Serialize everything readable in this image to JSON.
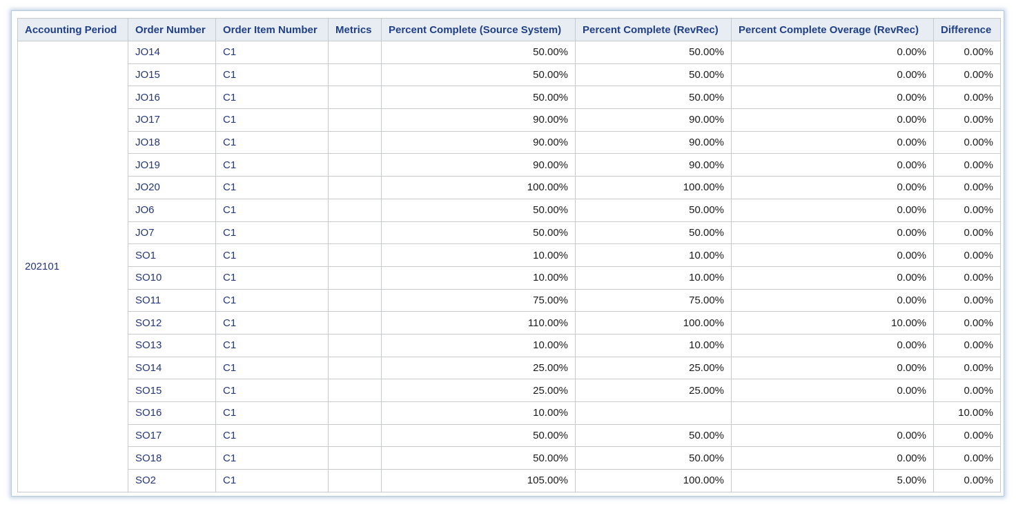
{
  "table": {
    "headers": [
      "Accounting Period",
      "Order Number",
      "Order Item Number",
      "Metrics",
      "Percent Complete (Source System)",
      "Percent Complete (RevRec)",
      "Percent Complete Overage (RevRec)",
      "Difference"
    ],
    "accounting_period": "202101",
    "rows": [
      {
        "order": "JO14",
        "item": "C1",
        "metrics": "",
        "pc_source": "50.00%",
        "pc_revrec": "50.00%",
        "overage": "0.00%",
        "difference": "0.00%"
      },
      {
        "order": "JO15",
        "item": "C1",
        "metrics": "",
        "pc_source": "50.00%",
        "pc_revrec": "50.00%",
        "overage": "0.00%",
        "difference": "0.00%"
      },
      {
        "order": "JO16",
        "item": "C1",
        "metrics": "",
        "pc_source": "50.00%",
        "pc_revrec": "50.00%",
        "overage": "0.00%",
        "difference": "0.00%"
      },
      {
        "order": "JO17",
        "item": "C1",
        "metrics": "",
        "pc_source": "90.00%",
        "pc_revrec": "90.00%",
        "overage": "0.00%",
        "difference": "0.00%"
      },
      {
        "order": "JO18",
        "item": "C1",
        "metrics": "",
        "pc_source": "90.00%",
        "pc_revrec": "90.00%",
        "overage": "0.00%",
        "difference": "0.00%"
      },
      {
        "order": "JO19",
        "item": "C1",
        "metrics": "",
        "pc_source": "90.00%",
        "pc_revrec": "90.00%",
        "overage": "0.00%",
        "difference": "0.00%"
      },
      {
        "order": "JO20",
        "item": "C1",
        "metrics": "",
        "pc_source": "100.00%",
        "pc_revrec": "100.00%",
        "overage": "0.00%",
        "difference": "0.00%"
      },
      {
        "order": "JO6",
        "item": "C1",
        "metrics": "",
        "pc_source": "50.00%",
        "pc_revrec": "50.00%",
        "overage": "0.00%",
        "difference": "0.00%"
      },
      {
        "order": "JO7",
        "item": "C1",
        "metrics": "",
        "pc_source": "50.00%",
        "pc_revrec": "50.00%",
        "overage": "0.00%",
        "difference": "0.00%"
      },
      {
        "order": "SO1",
        "item": "C1",
        "metrics": "",
        "pc_source": "10.00%",
        "pc_revrec": "10.00%",
        "overage": "0.00%",
        "difference": "0.00%"
      },
      {
        "order": "SO10",
        "item": "C1",
        "metrics": "",
        "pc_source": "10.00%",
        "pc_revrec": "10.00%",
        "overage": "0.00%",
        "difference": "0.00%"
      },
      {
        "order": "SO11",
        "item": "C1",
        "metrics": "",
        "pc_source": "75.00%",
        "pc_revrec": "75.00%",
        "overage": "0.00%",
        "difference": "0.00%"
      },
      {
        "order": "SO12",
        "item": "C1",
        "metrics": "",
        "pc_source": "110.00%",
        "pc_revrec": "100.00%",
        "overage": "10.00%",
        "difference": "0.00%"
      },
      {
        "order": "SO13",
        "item": "C1",
        "metrics": "",
        "pc_source": "10.00%",
        "pc_revrec": "10.00%",
        "overage": "0.00%",
        "difference": "0.00%"
      },
      {
        "order": "SO14",
        "item": "C1",
        "metrics": "",
        "pc_source": "25.00%",
        "pc_revrec": "25.00%",
        "overage": "0.00%",
        "difference": "0.00%"
      },
      {
        "order": "SO15",
        "item": "C1",
        "metrics": "",
        "pc_source": "25.00%",
        "pc_revrec": "25.00%",
        "overage": "0.00%",
        "difference": "0.00%"
      },
      {
        "order": "SO16",
        "item": "C1",
        "metrics": "",
        "pc_source": "10.00%",
        "pc_revrec": "",
        "overage": "",
        "difference": "10.00%"
      },
      {
        "order": "SO17",
        "item": "C1",
        "metrics": "",
        "pc_source": "50.00%",
        "pc_revrec": "50.00%",
        "overage": "0.00%",
        "difference": "0.00%"
      },
      {
        "order": "SO18",
        "item": "C1",
        "metrics": "",
        "pc_source": "50.00%",
        "pc_revrec": "50.00%",
        "overage": "0.00%",
        "difference": "0.00%"
      },
      {
        "order": "SO2",
        "item": "C1",
        "metrics": "",
        "pc_source": "105.00%",
        "pc_revrec": "100.00%",
        "overage": "5.00%",
        "difference": "0.00%"
      }
    ]
  }
}
